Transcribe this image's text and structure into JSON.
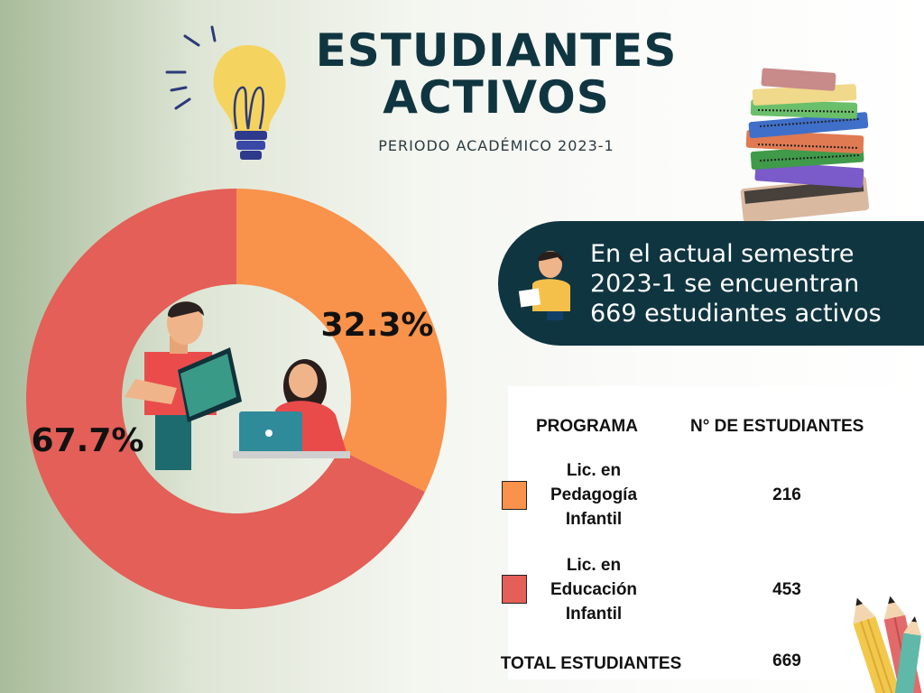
{
  "header": {
    "title_line1": "ESTUDIANTES",
    "title_line2": "ACTIVOS",
    "subtitle": "PERIODO ACADÉMICO 2023-1"
  },
  "banner": {
    "line1": "En el actual semestre",
    "line2": "2023-1 se encuentran",
    "line3": "669 estudiantes activos"
  },
  "table": {
    "col_program": "PROGRAMA",
    "col_students": "N° DE ESTUDIANTES",
    "rows": [
      {
        "line1": "Lic. en",
        "line2": "Pedagogía",
        "line3": "Infantil",
        "value": "216",
        "color": "#f9924a"
      },
      {
        "line1": "Lic. en",
        "line2": "Educación",
        "line3": "Infantil",
        "value": "453",
        "color": "#e35f57"
      }
    ],
    "total_label": "TOTAL ESTUDIANTES",
    "total_value": "669"
  },
  "chart_data": {
    "type": "pie",
    "title": "ESTUDIANTES ACTIVOS",
    "subtitle": "PERIODO ACADÉMICO 2023-1",
    "categories": [
      "Lic. en Pedagogía Infantil",
      "Lic. en Educación Infantil"
    ],
    "values": [
      216,
      453
    ],
    "percent_labels": [
      "32.3%",
      "67.7%"
    ],
    "colors": [
      "#f9924a",
      "#e35f57"
    ],
    "donut": true,
    "total": 669
  }
}
